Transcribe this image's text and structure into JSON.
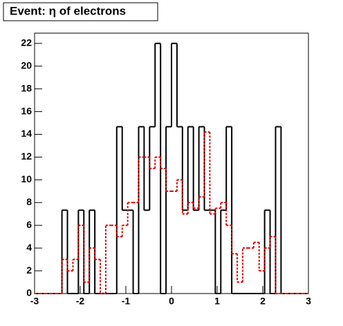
{
  "chart_data": {
    "type": "histogram",
    "title": "Event: η of electrons",
    "bins": [
      -3,
      -2.88,
      -2.76,
      -2.64,
      -2.52,
      -2.4,
      -2.28,
      -2.16,
      -2.04,
      -1.92,
      -1.8,
      -1.68,
      -1.56,
      -1.44,
      -1.32,
      -1.2,
      -1.08,
      -0.96,
      -0.84,
      -0.72,
      -0.6,
      -0.48,
      -0.36,
      -0.24,
      -0.12,
      0,
      0.12,
      0.24,
      0.36,
      0.48,
      0.6,
      0.72,
      0.84,
      0.96,
      1.08,
      1.2,
      1.32,
      1.44,
      1.56,
      1.68,
      1.8,
      1.92,
      2.04,
      2.16,
      2.28,
      2.4,
      2.52,
      2.64,
      2.76,
      2.88,
      3
    ],
    "series": [
      {
        "color": "#000000",
        "line_style": "solid",
        "values": [
          0,
          0,
          0,
          0,
          0,
          7.33,
          0,
          0,
          7.33,
          0,
          7.33,
          0,
          0,
          0,
          0,
          14.67,
          7.33,
          7.33,
          0,
          14.67,
          7.33,
          14.67,
          22,
          0,
          14.67,
          22,
          14.67,
          7.33,
          14.67,
          7.33,
          14.67,
          7.33,
          7.33,
          0,
          7.33,
          14.67,
          0,
          0,
          0,
          0,
          0,
          0,
          7.33,
          0,
          14.67,
          0,
          0,
          0,
          0,
          0
        ]
      },
      {
        "color": "#e00000",
        "line_style": "dashed",
        "values": [
          0,
          0,
          0,
          0,
          0,
          3,
          2,
          3,
          6,
          1,
          4,
          3,
          0,
          6,
          6,
          5,
          6,
          8,
          8,
          12,
          12,
          11,
          12,
          11,
          9,
          9,
          10,
          7,
          8,
          7.5,
          8.5,
          14.2,
          7,
          7.5,
          8,
          6,
          3.5,
          1,
          4,
          4,
          4.5,
          2,
          4,
          5,
          0,
          0,
          0,
          0,
          0,
          0
        ]
      }
    ],
    "xlim": [
      -3,
      3
    ],
    "xticks": [
      -3,
      -2,
      -1,
      0,
      1,
      2,
      3
    ],
    "ylim": [
      0,
      22.9
    ],
    "yticks": [
      0,
      2,
      4,
      6,
      8,
      10,
      12,
      14,
      16,
      18,
      20,
      22
    ]
  }
}
